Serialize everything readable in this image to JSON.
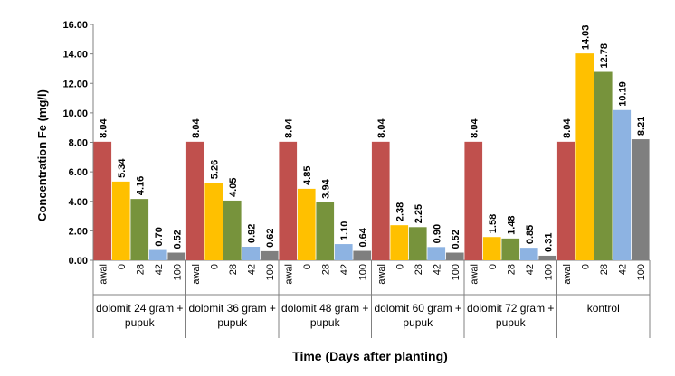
{
  "chart_data": {
    "type": "bar",
    "title": "",
    "ylabel": "Concentration  Fe (mg/l)",
    "xlabel": "Time (Days after planting)",
    "ylim": [
      0,
      16
    ],
    "yticks": [
      "0.00",
      "2.00",
      "4.00",
      "6.00",
      "8.00",
      "10.00",
      "12.00",
      "14.00",
      "16.00"
    ],
    "grid": false,
    "legend": "none",
    "groups": [
      {
        "label_line1": "dolomit 24 gram +",
        "label_line2": "pupuk",
        "bars": [
          {
            "day": "awal",
            "value": 8.04,
            "label": "8.04"
          },
          {
            "day": "0",
            "value": 5.34,
            "label": "5.34"
          },
          {
            "day": "28",
            "value": 4.16,
            "label": "4.16"
          },
          {
            "day": "42",
            "value": 0.7,
            "label": "0.70"
          },
          {
            "day": "100",
            "value": 0.52,
            "label": "0.52"
          }
        ]
      },
      {
        "label_line1": "dolomit 36 gram +",
        "label_line2": "pupuk",
        "bars": [
          {
            "day": "awal",
            "value": 8.04,
            "label": "8.04"
          },
          {
            "day": "0",
            "value": 5.26,
            "label": "5.26"
          },
          {
            "day": "28",
            "value": 4.05,
            "label": "4.05"
          },
          {
            "day": "42",
            "value": 0.92,
            "label": "0.92"
          },
          {
            "day": "100",
            "value": 0.62,
            "label": "0.62"
          }
        ]
      },
      {
        "label_line1": "dolomit 48 gram +",
        "label_line2": "pupuk",
        "bars": [
          {
            "day": "awal",
            "value": 8.04,
            "label": "8.04"
          },
          {
            "day": "0",
            "value": 4.85,
            "label": "4.85"
          },
          {
            "day": "28",
            "value": 3.94,
            "label": "3.94"
          },
          {
            "day": "42",
            "value": 1.1,
            "label": "1.10"
          },
          {
            "day": "100",
            "value": 0.64,
            "label": "0.64"
          }
        ]
      },
      {
        "label_line1": "dolomit 60 gram +",
        "label_line2": "pupuk",
        "bars": [
          {
            "day": "awal",
            "value": 8.04,
            "label": "8.04"
          },
          {
            "day": "0",
            "value": 2.38,
            "label": "2.38"
          },
          {
            "day": "28",
            "value": 2.25,
            "label": "2.25"
          },
          {
            "day": "42",
            "value": 0.9,
            "label": "0.90"
          },
          {
            "day": "100",
            "value": 0.52,
            "label": "0.52"
          }
        ]
      },
      {
        "label_line1": "dolomit 72 gram +",
        "label_line2": "pupuk",
        "bars": [
          {
            "day": "awal",
            "value": 8.04,
            "label": "8.04"
          },
          {
            "day": "0",
            "value": 1.58,
            "label": "1.58"
          },
          {
            "day": "28",
            "value": 1.48,
            "label": "1.48"
          },
          {
            "day": "42",
            "value": 0.85,
            "label": "0.85"
          },
          {
            "day": "100",
            "value": 0.31,
            "label": "0.31"
          }
        ]
      },
      {
        "label_line1": "kontrol",
        "label_line2": "",
        "bars": [
          {
            "day": "awal",
            "value": 8.04,
            "label": "8.04"
          },
          {
            "day": "0",
            "value": 14.03,
            "label": "14.03"
          },
          {
            "day": "28",
            "value": 12.78,
            "label": "12.78"
          },
          {
            "day": "42",
            "value": 10.19,
            "label": "10.19"
          },
          {
            "day": "100",
            "value": 8.21,
            "label": "8.21"
          }
        ]
      }
    ],
    "bar_colors": {
      "awal": "#c0504d",
      "0": "#ffc000",
      "28": "#77933c",
      "42": "#8db3e2",
      "100": "#7f7f7f"
    }
  }
}
